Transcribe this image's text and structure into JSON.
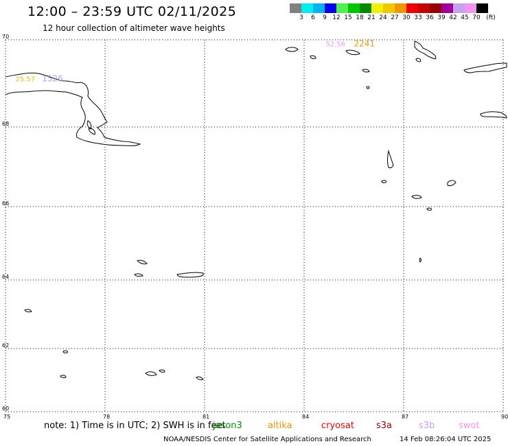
{
  "header": {
    "title": "12:00 – 23:59 UTC 02/11/2025",
    "subtitle": "12 hour collection of altimeter wave heights"
  },
  "legend": {
    "unit": "(ft)",
    "entries": [
      {
        "label": "3",
        "color": "#808080"
      },
      {
        "label": "6",
        "color": "#00f0f0"
      },
      {
        "label": "9",
        "color": "#00b4f0"
      },
      {
        "label": "12",
        "color": "#0000f0"
      },
      {
        "label": "15",
        "color": "#50f050"
      },
      {
        "label": "18",
        "color": "#00c800"
      },
      {
        "label": "21",
        "color": "#008c00"
      },
      {
        "label": "24",
        "color": "#f0f000"
      },
      {
        "label": "27",
        "color": "#f0c800"
      },
      {
        "label": "30",
        "color": "#f09600"
      },
      {
        "label": "33",
        "color": "#f00000"
      },
      {
        "label": "36",
        "color": "#c80000"
      },
      {
        "label": "39",
        "color": "#960000"
      },
      {
        "label": "42",
        "color": "#a000a0"
      },
      {
        "label": "45",
        "color": "#c8a0f0"
      },
      {
        "label": "70",
        "color": "#f096f0"
      },
      {
        "label": "",
        "color": "#000000"
      }
    ]
  },
  "map": {
    "lon_ticks": [
      "75",
      "78",
      "81",
      "84",
      "87",
      "90"
    ],
    "lat_ticks": [
      "60",
      "62",
      "64",
      "66",
      "68",
      "70"
    ],
    "labels": [
      {
        "text": "25.57",
        "lon": 75.3,
        "lat": 69.05,
        "color": "#e0c000"
      },
      {
        "text": "1526",
        "lon": 76.1,
        "lat": 69.05,
        "color": "#b0a0f0"
      },
      {
        "text": "52.56",
        "lon": 84.65,
        "lat": 69.85,
        "color": "#f096f0"
      },
      {
        "text": "2241",
        "lon": 85.5,
        "lat": 69.85,
        "color": "#f09600"
      }
    ]
  },
  "footer": {
    "note": "note: 1) Time is in UTC; 2) SWH is in feet",
    "satellites": [
      {
        "name": "jason3",
        "color": "#008c00"
      },
      {
        "name": "altika",
        "color": "#f09600"
      },
      {
        "name": "cryosat",
        "color": "#f00000"
      },
      {
        "name": "s3a",
        "color": "#960000"
      },
      {
        "name": "s3b",
        "color": "#c8a0f0"
      },
      {
        "name": "swot",
        "color": "#f096f0"
      }
    ],
    "credit": "NOAA/NESDIS Center for Satellite Applications and Research",
    "timestamp": "14 Feb 08:26:04 UTC 2025"
  }
}
